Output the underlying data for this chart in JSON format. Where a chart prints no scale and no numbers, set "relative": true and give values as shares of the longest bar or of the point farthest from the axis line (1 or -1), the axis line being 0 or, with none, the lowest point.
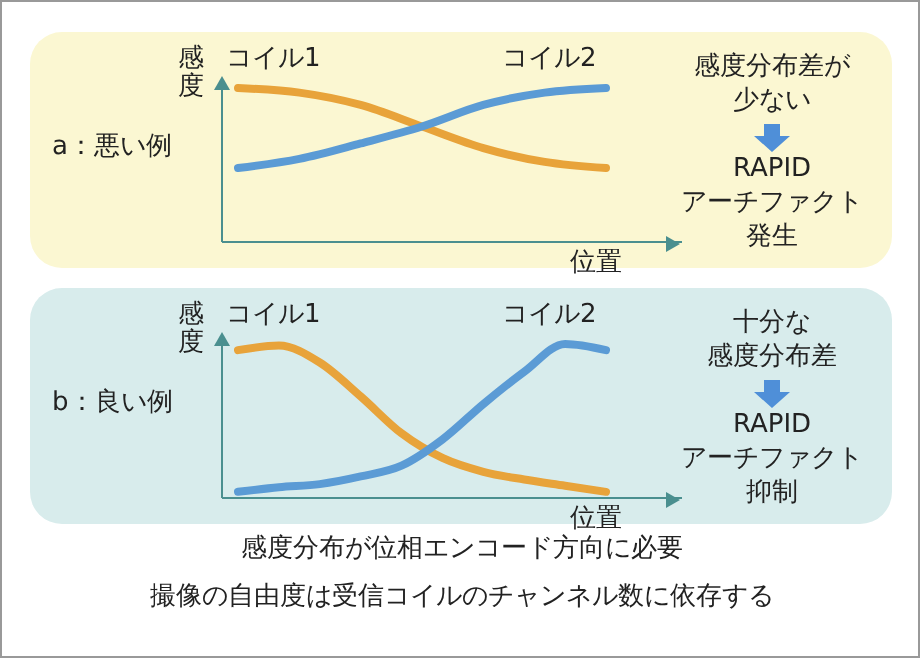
{
  "chart_data": [
    {
      "type": "line",
      "title": "a：悪い例",
      "xlabel": "位置",
      "ylabel": "感度",
      "relative": true,
      "grid": false,
      "legend": false,
      "marker": "none",
      "line_style": "solid",
      "categories": [
        null,
        null,
        null,
        null,
        null,
        null,
        null
      ],
      "series": [
        {
          "name": "コイル1",
          "color": "#e8a33a",
          "values": [
            1,
            0.97,
            0.89,
            0.75,
            0.61,
            0.52,
            0.48
          ]
        },
        {
          "name": "コイル2",
          "color": "#5b9bd5",
          "values": [
            0.48,
            0.54,
            0.64,
            0.75,
            0.89,
            0.97,
            1
          ]
        }
      ],
      "annotations": [
        "感度分布差が",
        "少ない",
        "RAPID",
        "アーチファクト",
        "発生"
      ]
    },
    {
      "type": "line",
      "title": "b：良い例",
      "xlabel": "位置",
      "ylabel": "感度",
      "relative": true,
      "grid": false,
      "legend": false,
      "marker": "none",
      "line_style": "solid",
      "categories": [
        null,
        null,
        null,
        null,
        null,
        null,
        null,
        null,
        null,
        null
      ],
      "series": [
        {
          "name": "コイル1",
          "color": "#e8a33a",
          "values": [
            0.96,
            0.99,
            0.88,
            0.66,
            0.42,
            0.26,
            0.17,
            0.12,
            0.08,
            0.04
          ]
        },
        {
          "name": "コイル2",
          "color": "#5b9bd5",
          "values": [
            0.04,
            0.07,
            0.09,
            0.14,
            0.21,
            0.38,
            0.61,
            0.82,
            1,
            0.96
          ]
        }
      ],
      "annotations": [
        "十分な",
        "感度分布差",
        "RAPID",
        "アーチファクト",
        "抑制",
        "感度分布が位相エンコード方向に必要",
        "撮像の自由度は受信コイルのチャンネル数に依存する"
      ]
    }
  ]
}
